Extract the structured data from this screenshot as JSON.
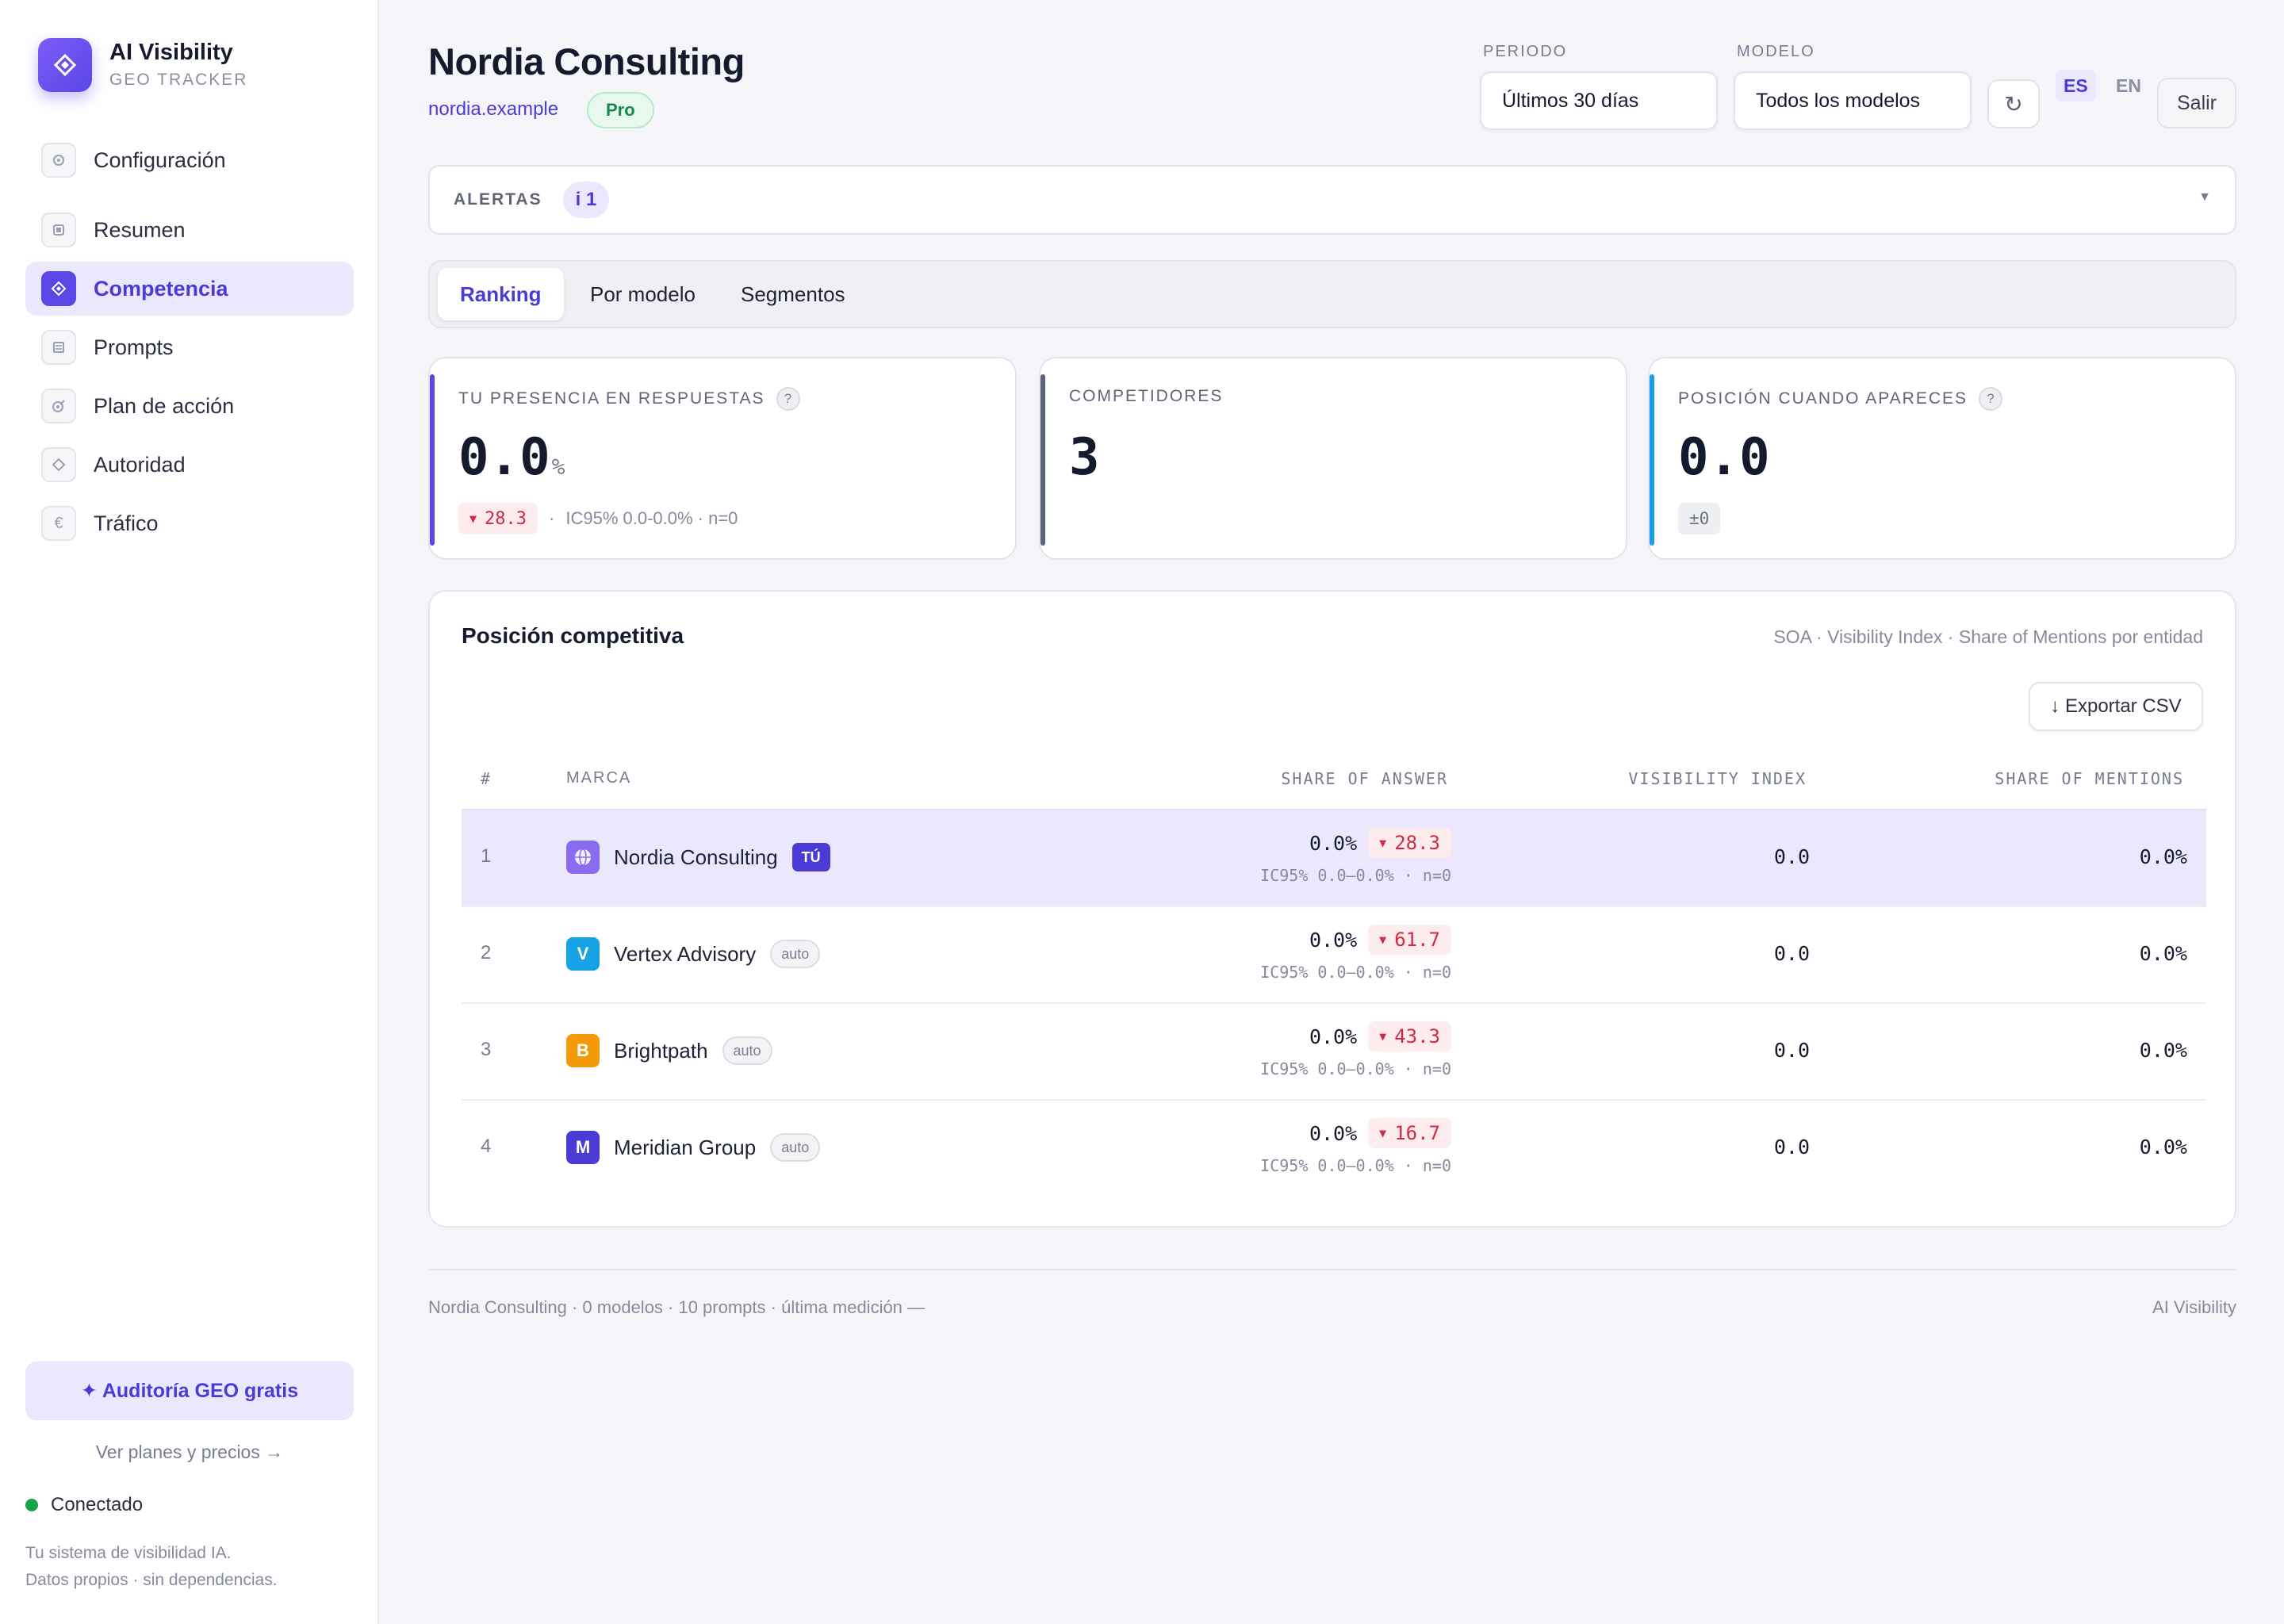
{
  "brand": {
    "title": "AI Visibility",
    "subtitle": "GEO TRACKER"
  },
  "sidebar": {
    "items": [
      {
        "label": "Configuración",
        "icon": "gear-icon",
        "active": false
      },
      {
        "label": "Resumen",
        "icon": "summary-icon",
        "active": false
      },
      {
        "label": "Competencia",
        "icon": "diamond-icon",
        "active": true
      },
      {
        "label": "Prompts",
        "icon": "list-icon",
        "active": false
      },
      {
        "label": "Plan de acción",
        "icon": "target-icon",
        "active": false
      },
      {
        "label": "Autoridad",
        "icon": "diamond-outline-icon",
        "active": false
      },
      {
        "label": "Tráfico",
        "icon": "euro-icon",
        "active": false
      }
    ],
    "audit_button": "✦ Auditoría GEO gratis",
    "plans_link": "Ver planes y precios →",
    "status": "Conectado",
    "tagline_1": "Tu sistema de visibilidad IA.",
    "tagline_2": "Datos propios · sin dependencias."
  },
  "header": {
    "title": "Nordia Consulting",
    "domain": "nordia.example",
    "plan": "Pro",
    "period_label": "PERIODO",
    "period_value": "Últimos 30 días",
    "model_label": "MODELO",
    "model_value": "Todos los modelos",
    "refresh_icon": "↻",
    "lang_es": "ES",
    "lang_en": "EN",
    "logout": "Salir"
  },
  "alerts": {
    "label": "ALERTAS",
    "count": "i 1"
  },
  "tabs": [
    "Ranking",
    "Por modelo",
    "Segmentos"
  ],
  "kpis": {
    "presence": {
      "title": "TU PRESENCIA EN RESPUESTAS",
      "value": "0.0",
      "unit": "%",
      "delta": "28.3",
      "ci": "IC95% 0.0-0.0% · n=0",
      "accent": "#5b46e6"
    },
    "competitors": {
      "title": "COMPETIDORES",
      "value": "3",
      "accent": "#5d6478"
    },
    "position": {
      "title": "POSICIÓN CUANDO APARECES",
      "value": "0.0",
      "delta": "±0",
      "accent": "#1e9be8"
    }
  },
  "competitive": {
    "title": "Posición competitiva",
    "subtitle": "SOA · Visibility Index · Share of Mentions por entidad",
    "export": "↓ Exportar CSV",
    "headers": {
      "rank": "#",
      "brand": "MARCA",
      "soa": "SHARE OF ANSWER",
      "vis": "VISIBILITY INDEX",
      "som": "SHARE OF MENTIONS"
    },
    "rows": [
      {
        "rank": "1",
        "name": "Nordia Consulting",
        "icon": "globe-icon",
        "icon_color": "#8b6cf0",
        "badge": "TÚ",
        "soa": "0.0%",
        "delta": "28.3",
        "ci": "IC95% 0.0–0.0% · n=0",
        "vis": "0.0",
        "som": "0.0%"
      },
      {
        "rank": "2",
        "name": "Vertex Advisory",
        "icon": "V",
        "icon_color": "#17a2e6",
        "badge": "auto",
        "soa": "0.0%",
        "delta": "61.7",
        "ci": "IC95% 0.0–0.0% · n=0",
        "vis": "0.0",
        "som": "0.0%"
      },
      {
        "rank": "3",
        "name": "Brightpath",
        "icon": "B",
        "icon_color": "#f39a0b",
        "badge": "auto",
        "soa": "0.0%",
        "delta": "43.3",
        "ci": "IC95% 0.0–0.0% · n=0",
        "vis": "0.0",
        "som": "0.0%"
      },
      {
        "rank": "4",
        "name": "Meridian Group",
        "icon": "M",
        "icon_color": "#4b3bd6",
        "badge": "auto",
        "soa": "0.0%",
        "delta": "16.7",
        "ci": "IC95% 0.0–0.0% · n=0",
        "vis": "0.0",
        "som": "0.0%"
      }
    ]
  },
  "footer": {
    "left": "Nordia Consulting · 0 modelos · 10 prompts · última medición —",
    "right": "AI Visibility"
  }
}
